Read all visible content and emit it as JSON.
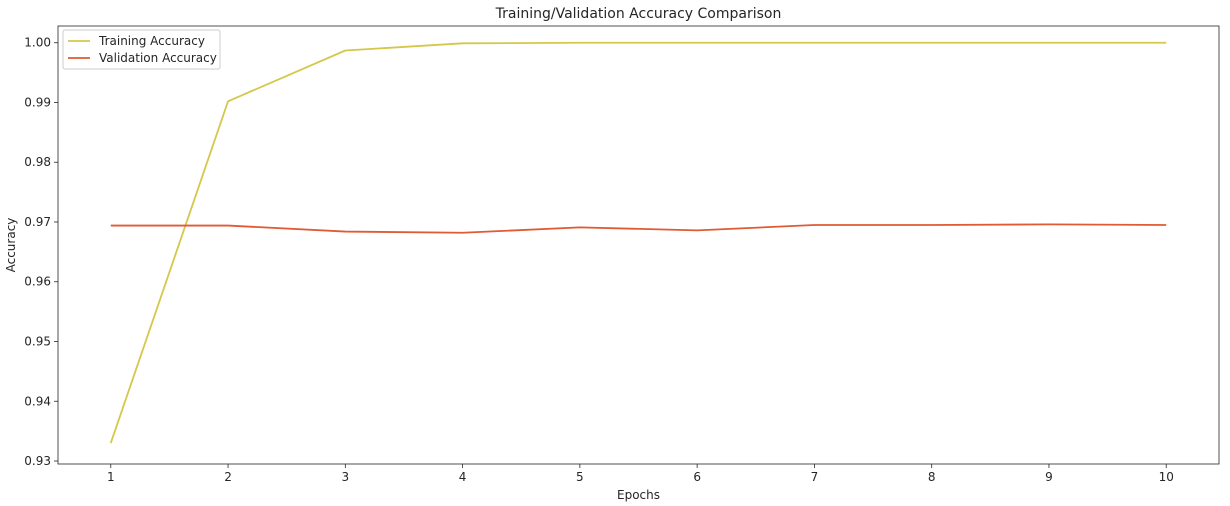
{
  "chart_data": {
    "type": "line",
    "title": "Training/Validation Accuracy Comparison",
    "xlabel": "Epochs",
    "ylabel": "Accuracy",
    "x": [
      1,
      2,
      3,
      4,
      5,
      6,
      7,
      8,
      9,
      10
    ],
    "xlim": [
      0.55,
      10.45
    ],
    "ylim": [
      0.9295,
      1.0028
    ],
    "xticks": [
      1,
      2,
      3,
      4,
      5,
      6,
      7,
      8,
      9,
      10
    ],
    "yticks": [
      0.93,
      0.94,
      0.95,
      0.96,
      0.97,
      0.98,
      0.99,
      1.0
    ],
    "ytick_labels": [
      "0.93",
      "0.94",
      "0.95",
      "0.96",
      "0.97",
      "0.98",
      "0.99",
      "1.00"
    ],
    "grid": false,
    "legend_position": "top-left",
    "series": [
      {
        "name": "Training Accuracy",
        "color": "#d4c84a",
        "values": [
          0.933,
          0.9902,
          0.9987,
          0.9999,
          1.0,
          1.0,
          1.0,
          1.0,
          1.0,
          1.0
        ]
      },
      {
        "name": "Validation Accuracy",
        "color": "#e05a33",
        "values": [
          0.9694,
          0.9694,
          0.9684,
          0.9682,
          0.9691,
          0.9686,
          0.9695,
          0.9695,
          0.9696,
          0.9695
        ]
      }
    ]
  }
}
